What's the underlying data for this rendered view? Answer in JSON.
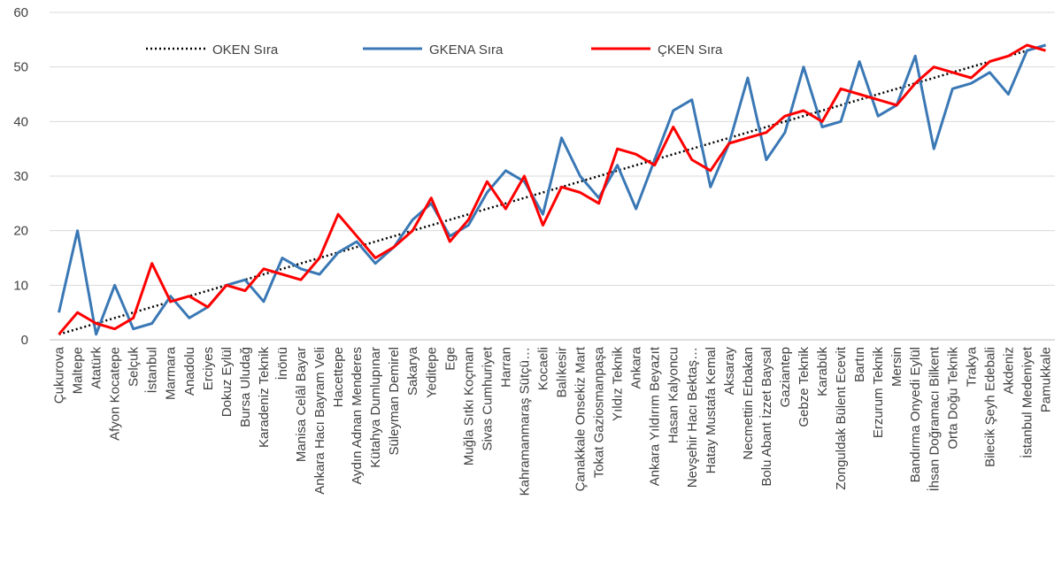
{
  "chart_data": {
    "type": "line",
    "categories": [
      "Çukurova",
      "Maltepe",
      "Atatürk",
      "Afyon Kocatepe",
      "Selçuk",
      "İstanbul",
      "Marmara",
      "Anadolu",
      "Erciyes",
      "Dokuz Eylül",
      "Bursa Uludağ",
      "Karadeniz Teknik",
      "İnönü",
      "Manisa Celâl Bayar",
      "Ankara Hacı Bayram Veli",
      "Hacettepe",
      "Aydın Adnan Menderes",
      "Kütahya Dumlupınar",
      "Süleyman Demirel",
      "Sakarya",
      "Yeditepe",
      "Ege",
      "Muğla Sıtkı Koçman",
      "Sivas Cumhuriyet",
      "Harran",
      "Kahramanmaraş Sütçü…",
      "Kocaeli",
      "Balıkesir",
      "Çanakkale Onsekiz Mart",
      "Tokat Gaziosmanpaşa",
      "Yıldız Teknik",
      "Ankara",
      "Ankara Yıldırım Beyazıt",
      "Hasan Kalyoncu",
      "Nevşehir Hacı Bektaş…",
      "Hatay Mustafa Kemal",
      "Aksaray",
      "Necmettin Erbakan",
      "Bolu Abant İzzet Baysal",
      "Gaziantep",
      "Gebze Teknik",
      "Karabük",
      "Zonguldak Bülent Ecevit",
      "Bartın",
      "Erzurum Teknik",
      "Mersin",
      "Bandırma Onyedi Eylül",
      "İhsan Doğramacı Bilkent",
      "Orta Doğu Teknik",
      "Trakya",
      "Bilecik Şeyh Edebali",
      "Akdeniz",
      "İstanbul Medeniyet",
      "Pamukkale"
    ],
    "series": [
      {
        "name": "OKEN Sıra",
        "color": "#000000",
        "style": "dotted",
        "values": [
          1,
          2,
          3,
          4,
          5,
          6,
          7,
          8,
          9,
          10,
          11,
          12,
          13,
          14,
          15,
          16,
          17,
          18,
          19,
          20,
          21,
          22,
          23,
          24,
          25,
          26,
          27,
          28,
          29,
          30,
          31,
          32,
          33,
          34,
          35,
          36,
          37,
          38,
          39,
          40,
          41,
          42,
          43,
          44,
          45,
          46,
          47,
          48,
          49,
          50,
          51,
          52,
          53,
          54
        ]
      },
      {
        "name": "GKENA Sıra",
        "color": "#3a78b5",
        "style": "solid",
        "values": [
          5,
          20,
          1,
          10,
          2,
          3,
          8,
          4,
          6,
          10,
          11,
          7,
          15,
          13,
          12,
          16,
          18,
          14,
          17,
          22,
          25,
          19,
          21,
          27,
          31,
          29,
          23,
          37,
          30,
          26,
          32,
          24,
          33,
          42,
          44,
          28,
          36,
          48,
          33,
          38,
          50,
          39,
          40,
          51,
          41,
          43,
          52,
          35,
          46,
          47,
          49,
          45,
          53,
          54
        ]
      },
      {
        "name": "ÇKEN Sıra",
        "color": "#ff0000",
        "style": "solid",
        "values": [
          1,
          5,
          3,
          2,
          4,
          14,
          7,
          8,
          6,
          10,
          9,
          13,
          12,
          11,
          15,
          23,
          19,
          15,
          17,
          20,
          26,
          18,
          22,
          29,
          24,
          30,
          21,
          28,
          27,
          25,
          35,
          34,
          32,
          39,
          33,
          31,
          36,
          37,
          38,
          41,
          42,
          40,
          46,
          45,
          44,
          43,
          47,
          50,
          49,
          48,
          51,
          52,
          54,
          53
        ]
      }
    ],
    "ylim": [
      0,
      60
    ],
    "yticks": [
      0,
      10,
      20,
      30,
      40,
      50,
      60
    ],
    "grid": true,
    "legend": "top"
  }
}
